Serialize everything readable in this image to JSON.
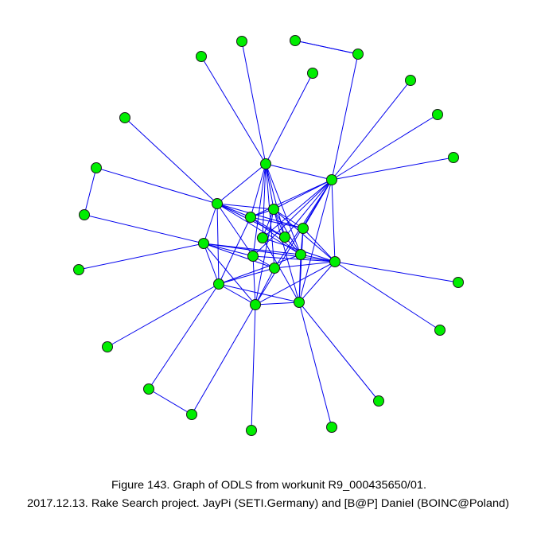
{
  "caption": {
    "line1": "Figure 143. Graph of ODLS from workunit R9_000435650/01.",
    "line2": "2017.12.13. Rake Search project. JayPi (SETI.Germany) and [B@P] Daniel (BOINC@Poland)"
  }
}
